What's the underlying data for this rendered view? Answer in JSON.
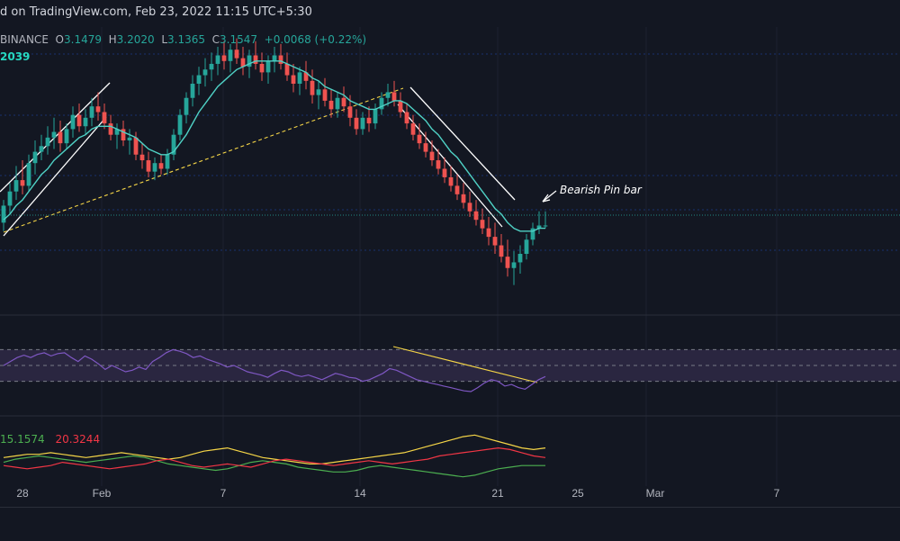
{
  "header": {
    "watermark": "d on TradingView.com, Feb 23, 2022 11:15 UTC+5:30"
  },
  "legend": {
    "exchange": "BINANCE",
    "open_label": "O",
    "open": "3.1479",
    "high_label": "H",
    "high": "3.2020",
    "low_label": "L",
    "low": "3.1365",
    "close_label": "C",
    "close": "3.1547",
    "change": "+0.0068 (+0.22%)",
    "ema_value": "2039"
  },
  "adx_legend": {
    "plus_di": "15.1574",
    "minus_di": "20.3244"
  },
  "annotation": {
    "text": "Bearish Pin bar"
  },
  "colors": {
    "background": "#131722",
    "up": "#26a69a",
    "down": "#ef5350",
    "ema": "#4fd1c5",
    "rsi": "#7e57c2",
    "rsi_band": "#2a2640",
    "trendline": "#f5d547",
    "channel": "#ffffff",
    "adx": "#f5d547",
    "plus_di": "#4caf50",
    "minus_di": "#f23645",
    "grid": "#1e2230"
  },
  "chart_data": {
    "type": "candlestick",
    "x_tick_labels": [
      "28",
      "Feb",
      "7",
      "14",
      "21",
      "25",
      "Mar",
      "7"
    ],
    "price_ylim": [
      2.85,
      3.85
    ],
    "candles_ohlc": [
      [
        3.16,
        3.24,
        3.13,
        3.22
      ],
      [
        3.22,
        3.3,
        3.19,
        3.27
      ],
      [
        3.27,
        3.36,
        3.24,
        3.31
      ],
      [
        3.31,
        3.38,
        3.26,
        3.29
      ],
      [
        3.29,
        3.4,
        3.27,
        3.37
      ],
      [
        3.37,
        3.45,
        3.33,
        3.41
      ],
      [
        3.41,
        3.47,
        3.38,
        3.43
      ],
      [
        3.43,
        3.5,
        3.4,
        3.46
      ],
      [
        3.46,
        3.53,
        3.42,
        3.48
      ],
      [
        3.48,
        3.52,
        3.41,
        3.44
      ],
      [
        3.44,
        3.51,
        3.42,
        3.49
      ],
      [
        3.49,
        3.57,
        3.46,
        3.54
      ],
      [
        3.54,
        3.58,
        3.48,
        3.5
      ],
      [
        3.5,
        3.56,
        3.47,
        3.53
      ],
      [
        3.53,
        3.6,
        3.5,
        3.57
      ],
      [
        3.57,
        3.62,
        3.52,
        3.55
      ],
      [
        3.55,
        3.58,
        3.49,
        3.51
      ],
      [
        3.51,
        3.54,
        3.45,
        3.47
      ],
      [
        3.47,
        3.51,
        3.42,
        3.49
      ],
      [
        3.49,
        3.52,
        3.43,
        3.45
      ],
      [
        3.45,
        3.49,
        3.4,
        3.46
      ],
      [
        3.46,
        3.48,
        3.38,
        3.4
      ],
      [
        3.4,
        3.44,
        3.35,
        3.38
      ],
      [
        3.38,
        3.41,
        3.32,
        3.34
      ],
      [
        3.34,
        3.39,
        3.31,
        3.37
      ],
      [
        3.37,
        3.4,
        3.33,
        3.35
      ],
      [
        3.35,
        3.42,
        3.33,
        3.4
      ],
      [
        3.4,
        3.49,
        3.38,
        3.47
      ],
      [
        3.47,
        3.56,
        3.45,
        3.54
      ],
      [
        3.54,
        3.62,
        3.51,
        3.6
      ],
      [
        3.6,
        3.68,
        3.57,
        3.65
      ],
      [
        3.65,
        3.71,
        3.61,
        3.68
      ],
      [
        3.68,
        3.74,
        3.64,
        3.7
      ],
      [
        3.7,
        3.76,
        3.66,
        3.72
      ],
      [
        3.72,
        3.78,
        3.68,
        3.75
      ],
      [
        3.75,
        3.8,
        3.7,
        3.73
      ],
      [
        3.73,
        3.79,
        3.69,
        3.77
      ],
      [
        3.77,
        3.81,
        3.72,
        3.74
      ],
      [
        3.74,
        3.78,
        3.68,
        3.71
      ],
      [
        3.71,
        3.77,
        3.67,
        3.75
      ],
      [
        3.75,
        3.8,
        3.7,
        3.72
      ],
      [
        3.72,
        3.76,
        3.66,
        3.69
      ],
      [
        3.69,
        3.75,
        3.65,
        3.73
      ],
      [
        3.73,
        3.78,
        3.69,
        3.75
      ],
      [
        3.75,
        3.79,
        3.7,
        3.72
      ],
      [
        3.72,
        3.76,
        3.66,
        3.68
      ],
      [
        3.68,
        3.72,
        3.62,
        3.65
      ],
      [
        3.65,
        3.71,
        3.61,
        3.69
      ],
      [
        3.69,
        3.73,
        3.63,
        3.66
      ],
      [
        3.66,
        3.7,
        3.58,
        3.61
      ],
      [
        3.61,
        3.66,
        3.56,
        3.63
      ],
      [
        3.63,
        3.67,
        3.57,
        3.59
      ],
      [
        3.59,
        3.63,
        3.53,
        3.56
      ],
      [
        3.56,
        3.62,
        3.53,
        3.6
      ],
      [
        3.6,
        3.64,
        3.55,
        3.57
      ],
      [
        3.57,
        3.61,
        3.5,
        3.53
      ],
      [
        3.53,
        3.56,
        3.47,
        3.49
      ],
      [
        3.49,
        3.55,
        3.47,
        3.53
      ],
      [
        3.53,
        3.57,
        3.48,
        3.51
      ],
      [
        3.51,
        3.58,
        3.49,
        3.56
      ],
      [
        3.56,
        3.62,
        3.54,
        3.6
      ],
      [
        3.6,
        3.65,
        3.57,
        3.62
      ],
      [
        3.62,
        3.66,
        3.57,
        3.59
      ],
      [
        3.59,
        3.62,
        3.53,
        3.55
      ],
      [
        3.55,
        3.58,
        3.49,
        3.51
      ],
      [
        3.51,
        3.54,
        3.45,
        3.47
      ],
      [
        3.47,
        3.51,
        3.42,
        3.44
      ],
      [
        3.44,
        3.48,
        3.39,
        3.41
      ],
      [
        3.41,
        3.45,
        3.36,
        3.38
      ],
      [
        3.38,
        3.42,
        3.33,
        3.35
      ],
      [
        3.35,
        3.39,
        3.3,
        3.32
      ],
      [
        3.32,
        3.36,
        3.27,
        3.29
      ],
      [
        3.29,
        3.33,
        3.24,
        3.26
      ],
      [
        3.26,
        3.3,
        3.21,
        3.23
      ],
      [
        3.23,
        3.27,
        3.18,
        3.2
      ],
      [
        3.2,
        3.24,
        3.15,
        3.17
      ],
      [
        3.17,
        3.21,
        3.12,
        3.14
      ],
      [
        3.14,
        3.18,
        3.08,
        3.11
      ],
      [
        3.11,
        3.16,
        3.05,
        3.08
      ],
      [
        3.08,
        3.12,
        3.02,
        3.04
      ],
      [
        3.04,
        3.1,
        2.97,
        3.0
      ],
      [
        3.0,
        3.06,
        2.94,
        3.02
      ],
      [
        3.02,
        3.08,
        2.98,
        3.05
      ],
      [
        3.05,
        3.12,
        3.03,
        3.1
      ],
      [
        3.1,
        3.16,
        3.08,
        3.14
      ],
      [
        3.14,
        3.2,
        3.12,
        3.15
      ],
      [
        3.15,
        3.2,
        3.14,
        3.15
      ]
    ],
    "ema": [
      3.17,
      3.19,
      3.22,
      3.24,
      3.27,
      3.3,
      3.33,
      3.35,
      3.38,
      3.4,
      3.42,
      3.44,
      3.46,
      3.47,
      3.49,
      3.5,
      3.5,
      3.5,
      3.49,
      3.48,
      3.47,
      3.46,
      3.44,
      3.42,
      3.41,
      3.4,
      3.4,
      3.41,
      3.44,
      3.47,
      3.51,
      3.55,
      3.58,
      3.61,
      3.64,
      3.66,
      3.68,
      3.7,
      3.71,
      3.72,
      3.73,
      3.73,
      3.73,
      3.73,
      3.73,
      3.72,
      3.71,
      3.7,
      3.69,
      3.67,
      3.66,
      3.64,
      3.63,
      3.62,
      3.61,
      3.59,
      3.58,
      3.57,
      3.56,
      3.56,
      3.57,
      3.58,
      3.59,
      3.59,
      3.58,
      3.56,
      3.54,
      3.52,
      3.49,
      3.47,
      3.44,
      3.41,
      3.39,
      3.36,
      3.33,
      3.3,
      3.27,
      3.24,
      3.21,
      3.19,
      3.16,
      3.14,
      3.13,
      3.13,
      3.13,
      3.14,
      3.14
    ],
    "rsi": [
      50,
      55,
      60,
      63,
      60,
      64,
      66,
      62,
      65,
      66,
      60,
      55,
      62,
      58,
      52,
      45,
      50,
      46,
      42,
      44,
      48,
      45,
      55,
      60,
      66,
      70,
      68,
      65,
      60,
      62,
      58,
      55,
      52,
      48,
      50,
      46,
      42,
      40,
      38,
      35,
      40,
      44,
      42,
      38,
      36,
      38,
      35,
      32,
      36,
      40,
      38,
      35,
      34,
      30,
      32,
      36,
      40,
      46,
      44,
      40,
      36,
      32,
      30,
      28,
      26,
      24,
      22,
      20,
      18,
      17,
      22,
      28,
      32,
      30,
      24,
      26,
      22,
      20,
      26,
      32,
      36
    ],
    "rsi_ylim": [
      0,
      100
    ],
    "rsi_levels": [
      70,
      50,
      30
    ],
    "adx": [
      20,
      21,
      22,
      22,
      23,
      22,
      21,
      20,
      21,
      22,
      23,
      22,
      21,
      20,
      19,
      20,
      22,
      24,
      25,
      26,
      24,
      22,
      20,
      19,
      18,
      17,
      16,
      16,
      17,
      18,
      19,
      20,
      21,
      22,
      23,
      25,
      27,
      29,
      31,
      33,
      34,
      32,
      30,
      28,
      26,
      25,
      26
    ],
    "plus_di": [
      17,
      19,
      20,
      21,
      20,
      19,
      18,
      17,
      18,
      19,
      20,
      21,
      20,
      18,
      16,
      15,
      14,
      13,
      12,
      13,
      15,
      17,
      18,
      17,
      16,
      14,
      13,
      12,
      11,
      11,
      12,
      14,
      15,
      14,
      13,
      12,
      11,
      10,
      9,
      8,
      9,
      11,
      13,
      14,
      15,
      15,
      15
    ],
    "minus_di": [
      15,
      14,
      13,
      14,
      15,
      17,
      16,
      15,
      14,
      13,
      14,
      15,
      16,
      18,
      19,
      17,
      15,
      14,
      15,
      16,
      15,
      14,
      16,
      18,
      19,
      18,
      17,
      16,
      15,
      16,
      17,
      18,
      17,
      16,
      17,
      18,
      19,
      21,
      22,
      23,
      24,
      25,
      26,
      25,
      23,
      21,
      20
    ]
  }
}
